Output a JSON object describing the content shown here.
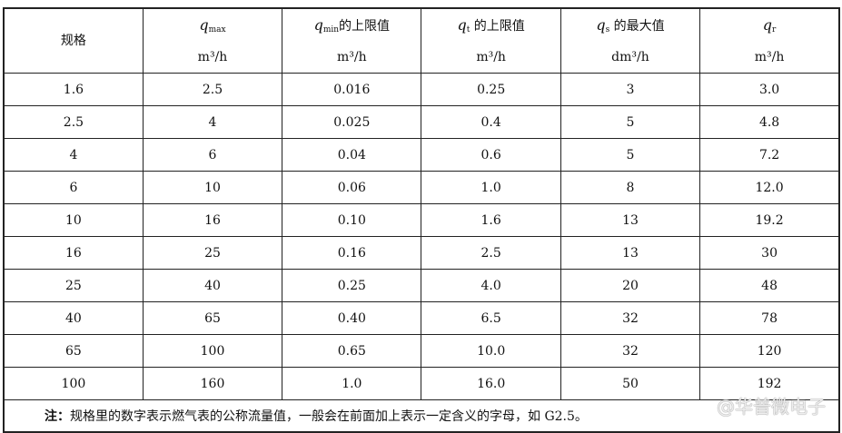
{
  "headers": [
    {
      "name": "规格",
      "unit": ""
    },
    {
      "symbol": "q",
      "sub": "max",
      "suffix": "",
      "unit": "m³/h"
    },
    {
      "symbol": "q",
      "sub": "min",
      "suffix": "的上限值",
      "unit": "m³/h"
    },
    {
      "symbol": "q",
      "sub": "t",
      "suffix": " 的上限值",
      "unit": "m³/h"
    },
    {
      "symbol": "q",
      "sub": "s",
      "suffix": " 的最大值",
      "unit": "dm³/h"
    },
    {
      "symbol": "q",
      "sub": "r",
      "suffix": "",
      "unit": "m³/h"
    }
  ],
  "rows": [
    [
      "1.6",
      "2.5",
      "0.016",
      "0.25",
      "3",
      "3.0"
    ],
    [
      "2.5",
      "4",
      "0.025",
      "0.4",
      "5",
      "4.8"
    ],
    [
      "4",
      "6",
      "0.04",
      "0.6",
      "5",
      "7.2"
    ],
    [
      "6",
      "10",
      "0.06",
      "1.0",
      "8",
      "12.0"
    ],
    [
      "10",
      "16",
      "0.10",
      "1.6",
      "13",
      "19.2"
    ],
    [
      "16",
      "25",
      "0.16",
      "2.5",
      "13",
      "30"
    ],
    [
      "25",
      "40",
      "0.25",
      "4.0",
      "20",
      "48"
    ],
    [
      "40",
      "65",
      "0.40",
      "6.5",
      "32",
      "78"
    ],
    [
      "65",
      "100",
      "0.65",
      "10.0",
      "32",
      "120"
    ],
    [
      "100",
      "160",
      "1.0",
      "16.0",
      "50",
      "192"
    ]
  ],
  "note": {
    "label": "注：",
    "text": "规格里的数字表示燃气表的公称流量值，一般会在前面加上表示一定含义的字母，如 G2.5。"
  },
  "watermark": "@华普微电子"
}
